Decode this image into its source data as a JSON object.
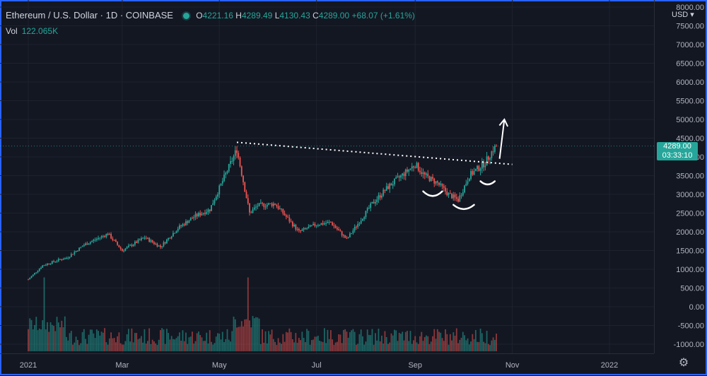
{
  "header": {
    "symbol": "Ethereum / U.S. Dollar · 1D · COINBASE",
    "open_label": "O",
    "open": "4221.16",
    "high_label": "H",
    "high": "4289.49",
    "low_label": "L",
    "low": "4130.43",
    "close_label": "C",
    "close": "4289.00",
    "change": "+68.07 (+1.61%)"
  },
  "volume": {
    "label": "Vol",
    "value": "122.065K"
  },
  "price_axis": {
    "currency": "USD",
    "last_price": "4289.00",
    "countdown": "03:33:10"
  },
  "colors": {
    "background": "#131722",
    "up": "#26a69a",
    "down": "#ef5350",
    "frame": "#2962ff"
  },
  "chart_data": {
    "type": "candlestick",
    "y_tick_labels": [
      "8000.00",
      "7500.00",
      "7000.00",
      "6500.00",
      "6000.00",
      "5500.00",
      "5000.00",
      "4500.00",
      "4000.00",
      "3500.00",
      "3000.00",
      "2500.00",
      "2000.00",
      "1500.00",
      "1000.00",
      "500.00",
      "0.00",
      "-500.00",
      "-1000.00"
    ],
    "x_tick_labels": [
      "2021",
      "Mar",
      "May",
      "Jul",
      "Sep",
      "Nov",
      "2022"
    ],
    "ylim": [
      -1000,
      8000
    ],
    "grid": true,
    "price_path": [
      {
        "date": "2021-01-01",
        "price": 730
      },
      {
        "date": "2021-01-10",
        "price": 1100
      },
      {
        "date": "2021-01-20",
        "price": 1250
      },
      {
        "date": "2021-01-25",
        "price": 1300
      },
      {
        "date": "2021-02-05",
        "price": 1650
      },
      {
        "date": "2021-02-20",
        "price": 1950
      },
      {
        "date": "2021-03-01",
        "price": 1500
      },
      {
        "date": "2021-03-15",
        "price": 1850
      },
      {
        "date": "2021-03-25",
        "price": 1600
      },
      {
        "date": "2021-04-05",
        "price": 2100
      },
      {
        "date": "2021-04-15",
        "price": 2400
      },
      {
        "date": "2021-04-25",
        "price": 2600
      },
      {
        "date": "2021-05-12",
        "price": 4200
      },
      {
        "date": "2021-05-20",
        "price": 2500
      },
      {
        "date": "2021-05-25",
        "price": 2700
      },
      {
        "date": "2021-06-05",
        "price": 2750
      },
      {
        "date": "2021-06-20",
        "price": 2000
      },
      {
        "date": "2021-07-01",
        "price": 2200
      },
      {
        "date": "2021-07-10",
        "price": 2250
      },
      {
        "date": "2021-07-20",
        "price": 1800
      },
      {
        "date": "2021-08-05",
        "price": 2750
      },
      {
        "date": "2021-08-15",
        "price": 3200
      },
      {
        "date": "2021-09-01",
        "price": 3800
      },
      {
        "date": "2021-09-07",
        "price": 3500
      },
      {
        "date": "2021-09-15",
        "price": 3300
      },
      {
        "date": "2021-09-22",
        "price": 3000
      },
      {
        "date": "2021-09-28",
        "price": 2850
      },
      {
        "date": "2021-10-05",
        "price": 3500
      },
      {
        "date": "2021-10-15",
        "price": 3850
      },
      {
        "date": "2021-10-20",
        "price": 4200
      },
      {
        "date": "2021-10-22",
        "price": 4289
      }
    ],
    "volume_note": "volume histogram at bottom, spikes in Jan and mid-May",
    "annotations": {
      "trendline": [
        {
          "date": "2021-05-12",
          "price": 4390
        },
        {
          "date": "2021-11-01",
          "price": 3800
        }
      ],
      "arrow": [
        {
          "date": "2021-10-24",
          "price": 3950
        },
        {
          "date": "2021-10-27",
          "price": 5000
        }
      ]
    }
  }
}
